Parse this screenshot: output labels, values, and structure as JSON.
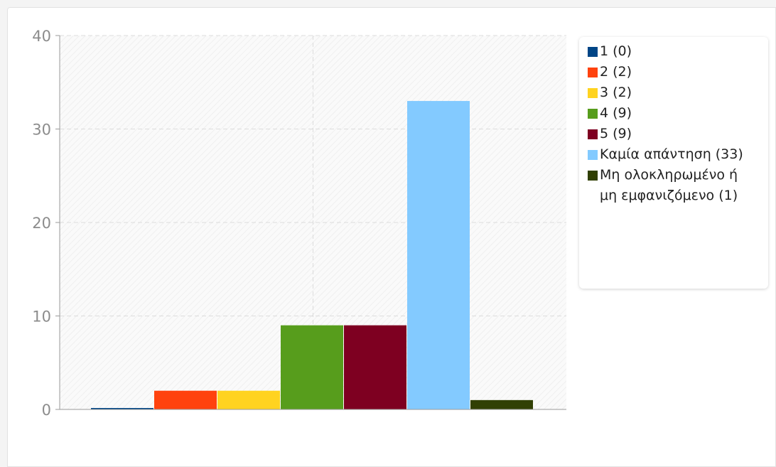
{
  "chart_data": {
    "type": "bar",
    "title": "",
    "xlabel": "",
    "ylabel": "",
    "ylim": [
      0,
      40
    ],
    "yticks": [
      0,
      10,
      20,
      30,
      40
    ],
    "grid": true,
    "legend_position": "right",
    "series": [
      {
        "name": "1 (0)",
        "value": 0,
        "color": "#004586"
      },
      {
        "name": "2 (2)",
        "value": 2,
        "color": "#ff420e"
      },
      {
        "name": "3 (2)",
        "value": 2,
        "color": "#ffd320"
      },
      {
        "name": "4 (9)",
        "value": 9,
        "color": "#579d1c"
      },
      {
        "name": "5 (9)",
        "value": 9,
        "color": "#7e0021"
      },
      {
        "name": "Καμία απάντηση (33)",
        "value": 33,
        "color": "#83caff"
      },
      {
        "name": "Μη ολοκληρωμένο ή μη εμφανιζόμενο (1)",
        "value": 1,
        "color": "#314004"
      }
    ]
  }
}
